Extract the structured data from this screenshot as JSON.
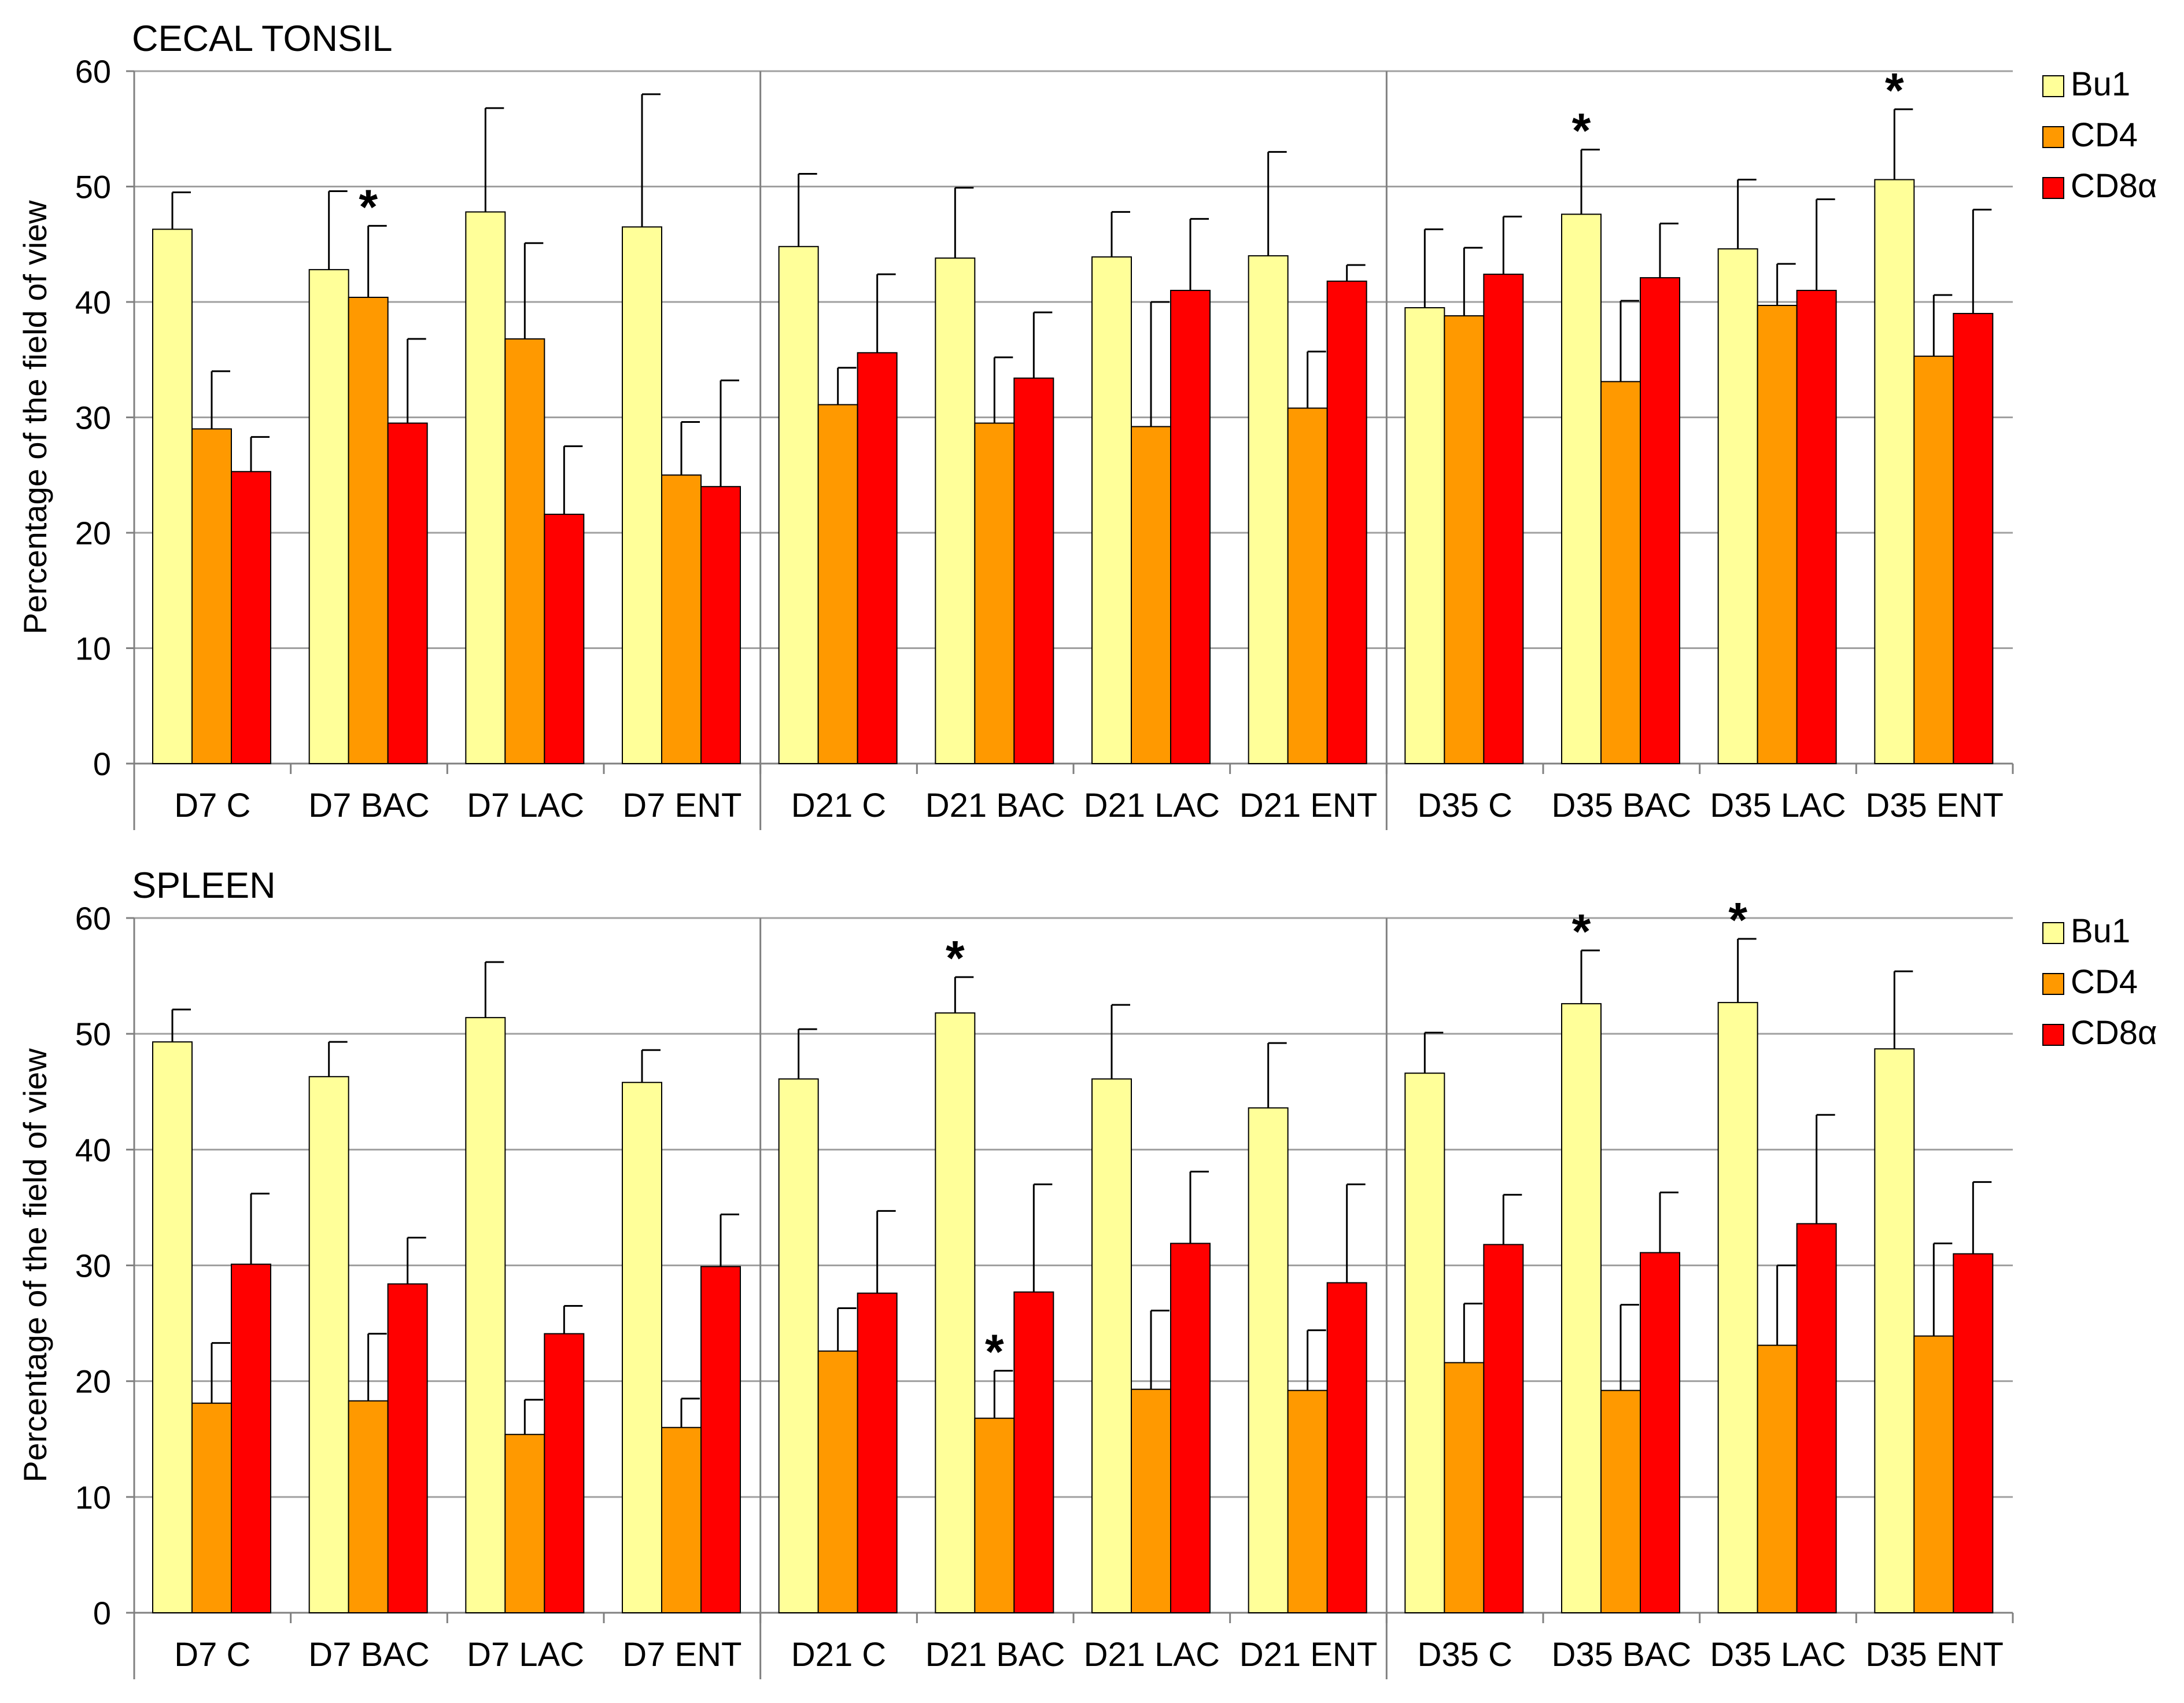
{
  "colors": {
    "bu1": "#ffff99",
    "cd4": "#ff9900",
    "cd8": "#ff0000",
    "grid": "#a0a0a0",
    "axis": "#808080"
  },
  "chart_data": [
    {
      "type": "bar",
      "title": "CECAL TONSIL",
      "ylabel": "Percentage of the field of view",
      "ylim": [
        0,
        60
      ],
      "yticks": [
        0,
        10,
        20,
        30,
        40,
        50,
        60
      ],
      "categories": [
        "D7 C",
        "D7 BAC",
        "D7 LAC",
        "D7 ENT",
        "D21 C",
        "D21 BAC",
        "D21 LAC",
        "D21 ENT",
        "D35 C",
        "D35 BAC",
        "D35 LAC",
        "D35 ENT"
      ],
      "legend": {
        "position": "right",
        "entries": [
          "Bu1",
          "CD4",
          "CD8α"
        ]
      },
      "series": [
        {
          "name": "Bu1",
          "color": "#ffff99",
          "values": [
            46.3,
            42.8,
            47.8,
            46.5,
            44.8,
            43.8,
            43.9,
            44.0,
            39.5,
            47.6,
            44.6,
            50.6
          ],
          "errors": [
            3.2,
            6.8,
            9.0,
            11.5,
            6.3,
            6.1,
            3.9,
            9.0,
            6.8,
            5.6,
            6.0,
            6.1
          ]
        },
        {
          "name": "CD4",
          "color": "#ff9900",
          "values": [
            29.0,
            40.4,
            36.8,
            25.0,
            31.1,
            29.5,
            29.2,
            30.8,
            38.8,
            33.1,
            39.7,
            35.3
          ],
          "errors": [
            5.0,
            6.2,
            8.3,
            4.6,
            3.2,
            5.7,
            10.8,
            4.9,
            5.9,
            7.0,
            3.6,
            5.3
          ]
        },
        {
          "name": "CD8α",
          "color": "#ff0000",
          "values": [
            25.3,
            29.5,
            21.6,
            24.0,
            35.6,
            33.4,
            41.0,
            41.8,
            42.4,
            42.1,
            41.0,
            39.0
          ],
          "errors": [
            3.0,
            7.3,
            5.9,
            9.2,
            6.8,
            5.7,
            6.2,
            1.4,
            5.0,
            4.7,
            7.9,
            9.0
          ]
        }
      ],
      "significance": [
        {
          "category": "D7 BAC",
          "series": "CD4",
          "label": "*"
        },
        {
          "category": "D35 BAC",
          "series": "Bu1",
          "label": "*"
        },
        {
          "category": "D35 ENT",
          "series": "Bu1",
          "label": "*"
        }
      ]
    },
    {
      "type": "bar",
      "title": "SPLEEN",
      "ylabel": "Percentage of the field of view",
      "ylim": [
        0,
        60
      ],
      "yticks": [
        0,
        10,
        20,
        30,
        40,
        50,
        60
      ],
      "categories": [
        "D7 C",
        "D7 BAC",
        "D7 LAC",
        "D7 ENT",
        "D21 C",
        "D21 BAC",
        "D21 LAC",
        "D21 ENT",
        "D35 C",
        "D35 BAC",
        "D35 LAC",
        "D35 ENT"
      ],
      "legend": {
        "position": "right",
        "entries": [
          "Bu1",
          "CD4",
          "CD8α"
        ]
      },
      "series": [
        {
          "name": "Bu1",
          "color": "#ffff99",
          "values": [
            49.3,
            46.3,
            51.4,
            45.8,
            46.1,
            51.8,
            46.1,
            43.6,
            46.6,
            52.6,
            52.7,
            48.7
          ],
          "errors": [
            2.8,
            3.0,
            4.8,
            2.8,
            4.3,
            3.1,
            6.4,
            5.6,
            3.5,
            4.6,
            5.5,
            6.7
          ]
        },
        {
          "name": "CD4",
          "color": "#ff9900",
          "values": [
            18.1,
            18.3,
            15.4,
            16.0,
            22.6,
            16.8,
            19.3,
            19.2,
            21.6,
            19.2,
            23.1,
            23.9
          ],
          "errors": [
            5.2,
            5.8,
            3.0,
            2.5,
            3.7,
            4.1,
            6.8,
            5.2,
            5.1,
            7.4,
            6.9,
            8.0
          ]
        },
        {
          "name": "CD8α",
          "color": "#ff0000",
          "values": [
            30.1,
            28.4,
            24.1,
            29.9,
            27.6,
            27.7,
            31.9,
            28.5,
            31.8,
            31.1,
            33.6,
            31.0
          ],
          "errors": [
            6.1,
            4.0,
            2.4,
            4.5,
            7.1,
            9.3,
            6.2,
            8.5,
            4.3,
            5.2,
            9.4,
            6.2
          ]
        }
      ],
      "significance": [
        {
          "category": "D21 BAC",
          "series": "Bu1",
          "label": "*"
        },
        {
          "category": "D21 BAC",
          "series": "CD4",
          "label": "*"
        },
        {
          "category": "D35 BAC",
          "series": "Bu1",
          "label": "*"
        },
        {
          "category": "D35 LAC",
          "series": "Bu1",
          "label": "*"
        }
      ]
    }
  ]
}
